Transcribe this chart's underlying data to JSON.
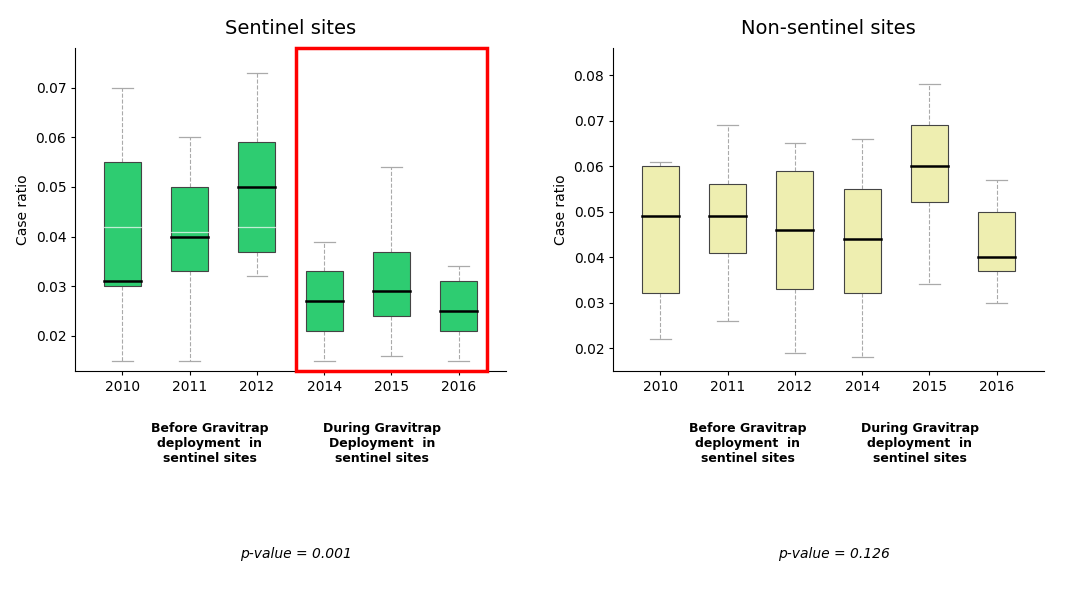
{
  "sentinel": {
    "title": "Sentinel sites",
    "ylabel": "Case ratio",
    "pvalue": "p-value = 0.001",
    "ylim": [
      0.013,
      0.078
    ],
    "yticks": [
      0.02,
      0.03,
      0.04,
      0.05,
      0.06,
      0.07
    ],
    "years": [
      "2010",
      "2011",
      "2012",
      "2014",
      "2015",
      "2016"
    ],
    "box_color": "#2ecc71",
    "whisker_color": "#aaaaaa",
    "median_color": "#000000",
    "boxes": [
      {
        "year": "2010",
        "q1": 0.03,
        "median": 0.031,
        "q3": 0.055,
        "whislo": 0.015,
        "whishi": 0.07
      },
      {
        "year": "2011",
        "q1": 0.033,
        "median": 0.04,
        "q3": 0.05,
        "whislo": 0.015,
        "whishi": 0.06
      },
      {
        "year": "2012",
        "q1": 0.037,
        "median": 0.05,
        "q3": 0.059,
        "whislo": 0.032,
        "whishi": 0.073
      },
      {
        "year": "2014",
        "q1": 0.021,
        "median": 0.027,
        "q3": 0.033,
        "whislo": 0.015,
        "whishi": 0.039
      },
      {
        "year": "2015",
        "q1": 0.024,
        "median": 0.029,
        "q3": 0.037,
        "whislo": 0.016,
        "whishi": 0.054
      },
      {
        "year": "2016",
        "q1": 0.021,
        "median": 0.025,
        "q3": 0.031,
        "whislo": 0.015,
        "whishi": 0.034
      }
    ],
    "mean_line_color": "#ffffff",
    "means": [
      0.042,
      0.041,
      0.042,
      null,
      null,
      null
    ],
    "label_before": "Before Gravitrap\ndeployment  in\nsentinel sites",
    "label_during": "During Gravitrap\nDeployment  in\nsentinel sites"
  },
  "nonsentinel": {
    "title": "Non-sentinel sites",
    "ylabel": "Case ratio",
    "pvalue": "p-value = 0.126",
    "ylim": [
      0.015,
      0.086
    ],
    "yticks": [
      0.02,
      0.03,
      0.04,
      0.05,
      0.06,
      0.07,
      0.08
    ],
    "years": [
      "2010",
      "2011",
      "2012",
      "2014",
      "2015",
      "2016"
    ],
    "box_color": "#eeeeb0",
    "whisker_color": "#aaaaaa",
    "median_color": "#000000",
    "boxes": [
      {
        "year": "2010",
        "q1": 0.032,
        "median": 0.049,
        "q3": 0.06,
        "whislo": 0.022,
        "whishi": 0.061
      },
      {
        "year": "2011",
        "q1": 0.041,
        "median": 0.049,
        "q3": 0.056,
        "whislo": 0.026,
        "whishi": 0.069
      },
      {
        "year": "2012",
        "q1": 0.033,
        "median": 0.046,
        "q3": 0.059,
        "whislo": 0.019,
        "whishi": 0.065
      },
      {
        "year": "2014",
        "q1": 0.032,
        "median": 0.044,
        "q3": 0.055,
        "whislo": 0.018,
        "whishi": 0.066
      },
      {
        "year": "2015",
        "q1": 0.052,
        "median": 0.06,
        "q3": 0.069,
        "whislo": 0.034,
        "whishi": 0.078
      },
      {
        "year": "2016",
        "q1": 0.037,
        "median": 0.04,
        "q3": 0.05,
        "whislo": 0.03,
        "whishi": 0.057
      }
    ],
    "means": [
      null,
      null,
      null,
      null,
      null,
      null
    ],
    "label_before": "Before Gravitrap\ndeployment  in\nsentinel sites",
    "label_during": "During Gravitrap\ndeployment  in\nsentinel sites"
  },
  "background_color": "#ffffff",
  "fig_width": 10.76,
  "fig_height": 5.98
}
